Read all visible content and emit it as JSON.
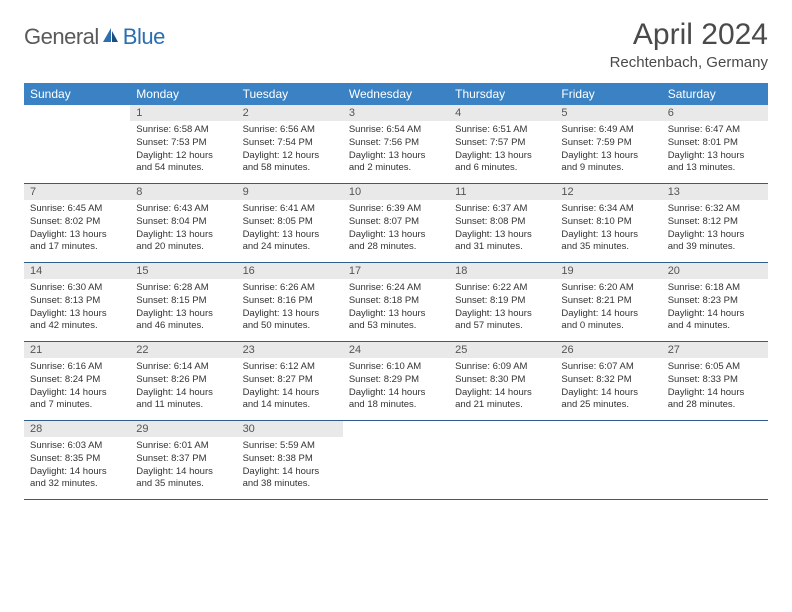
{
  "logo": {
    "text_general": "General",
    "text_blue": "Blue"
  },
  "title": "April 2024",
  "subtitle": "Rechtenbach, Germany",
  "colors": {
    "header_bg": "#3a82c4",
    "header_text": "#ffffff",
    "daynum_bg": "#e9e9e9",
    "border": "#2f5e8c",
    "logo_gray": "#5a5a5a",
    "logo_blue": "#2b6fb0"
  },
  "weekdays": [
    "Sunday",
    "Monday",
    "Tuesday",
    "Wednesday",
    "Thursday",
    "Friday",
    "Saturday"
  ],
  "weeks": [
    [
      {
        "n": "",
        "l1": "",
        "l2": "",
        "l3": "",
        "l4": ""
      },
      {
        "n": "1",
        "l1": "Sunrise: 6:58 AM",
        "l2": "Sunset: 7:53 PM",
        "l3": "Daylight: 12 hours",
        "l4": "and 54 minutes."
      },
      {
        "n": "2",
        "l1": "Sunrise: 6:56 AM",
        "l2": "Sunset: 7:54 PM",
        "l3": "Daylight: 12 hours",
        "l4": "and 58 minutes."
      },
      {
        "n": "3",
        "l1": "Sunrise: 6:54 AM",
        "l2": "Sunset: 7:56 PM",
        "l3": "Daylight: 13 hours",
        "l4": "and 2 minutes."
      },
      {
        "n": "4",
        "l1": "Sunrise: 6:51 AM",
        "l2": "Sunset: 7:57 PM",
        "l3": "Daylight: 13 hours",
        "l4": "and 6 minutes."
      },
      {
        "n": "5",
        "l1": "Sunrise: 6:49 AM",
        "l2": "Sunset: 7:59 PM",
        "l3": "Daylight: 13 hours",
        "l4": "and 9 minutes."
      },
      {
        "n": "6",
        "l1": "Sunrise: 6:47 AM",
        "l2": "Sunset: 8:01 PM",
        "l3": "Daylight: 13 hours",
        "l4": "and 13 minutes."
      }
    ],
    [
      {
        "n": "7",
        "l1": "Sunrise: 6:45 AM",
        "l2": "Sunset: 8:02 PM",
        "l3": "Daylight: 13 hours",
        "l4": "and 17 minutes."
      },
      {
        "n": "8",
        "l1": "Sunrise: 6:43 AM",
        "l2": "Sunset: 8:04 PM",
        "l3": "Daylight: 13 hours",
        "l4": "and 20 minutes."
      },
      {
        "n": "9",
        "l1": "Sunrise: 6:41 AM",
        "l2": "Sunset: 8:05 PM",
        "l3": "Daylight: 13 hours",
        "l4": "and 24 minutes."
      },
      {
        "n": "10",
        "l1": "Sunrise: 6:39 AM",
        "l2": "Sunset: 8:07 PM",
        "l3": "Daylight: 13 hours",
        "l4": "and 28 minutes."
      },
      {
        "n": "11",
        "l1": "Sunrise: 6:37 AM",
        "l2": "Sunset: 8:08 PM",
        "l3": "Daylight: 13 hours",
        "l4": "and 31 minutes."
      },
      {
        "n": "12",
        "l1": "Sunrise: 6:34 AM",
        "l2": "Sunset: 8:10 PM",
        "l3": "Daylight: 13 hours",
        "l4": "and 35 minutes."
      },
      {
        "n": "13",
        "l1": "Sunrise: 6:32 AM",
        "l2": "Sunset: 8:12 PM",
        "l3": "Daylight: 13 hours",
        "l4": "and 39 minutes."
      }
    ],
    [
      {
        "n": "14",
        "l1": "Sunrise: 6:30 AM",
        "l2": "Sunset: 8:13 PM",
        "l3": "Daylight: 13 hours",
        "l4": "and 42 minutes."
      },
      {
        "n": "15",
        "l1": "Sunrise: 6:28 AM",
        "l2": "Sunset: 8:15 PM",
        "l3": "Daylight: 13 hours",
        "l4": "and 46 minutes."
      },
      {
        "n": "16",
        "l1": "Sunrise: 6:26 AM",
        "l2": "Sunset: 8:16 PM",
        "l3": "Daylight: 13 hours",
        "l4": "and 50 minutes."
      },
      {
        "n": "17",
        "l1": "Sunrise: 6:24 AM",
        "l2": "Sunset: 8:18 PM",
        "l3": "Daylight: 13 hours",
        "l4": "and 53 minutes."
      },
      {
        "n": "18",
        "l1": "Sunrise: 6:22 AM",
        "l2": "Sunset: 8:19 PM",
        "l3": "Daylight: 13 hours",
        "l4": "and 57 minutes."
      },
      {
        "n": "19",
        "l1": "Sunrise: 6:20 AM",
        "l2": "Sunset: 8:21 PM",
        "l3": "Daylight: 14 hours",
        "l4": "and 0 minutes."
      },
      {
        "n": "20",
        "l1": "Sunrise: 6:18 AM",
        "l2": "Sunset: 8:23 PM",
        "l3": "Daylight: 14 hours",
        "l4": "and 4 minutes."
      }
    ],
    [
      {
        "n": "21",
        "l1": "Sunrise: 6:16 AM",
        "l2": "Sunset: 8:24 PM",
        "l3": "Daylight: 14 hours",
        "l4": "and 7 minutes."
      },
      {
        "n": "22",
        "l1": "Sunrise: 6:14 AM",
        "l2": "Sunset: 8:26 PM",
        "l3": "Daylight: 14 hours",
        "l4": "and 11 minutes."
      },
      {
        "n": "23",
        "l1": "Sunrise: 6:12 AM",
        "l2": "Sunset: 8:27 PM",
        "l3": "Daylight: 14 hours",
        "l4": "and 14 minutes."
      },
      {
        "n": "24",
        "l1": "Sunrise: 6:10 AM",
        "l2": "Sunset: 8:29 PM",
        "l3": "Daylight: 14 hours",
        "l4": "and 18 minutes."
      },
      {
        "n": "25",
        "l1": "Sunrise: 6:09 AM",
        "l2": "Sunset: 8:30 PM",
        "l3": "Daylight: 14 hours",
        "l4": "and 21 minutes."
      },
      {
        "n": "26",
        "l1": "Sunrise: 6:07 AM",
        "l2": "Sunset: 8:32 PM",
        "l3": "Daylight: 14 hours",
        "l4": "and 25 minutes."
      },
      {
        "n": "27",
        "l1": "Sunrise: 6:05 AM",
        "l2": "Sunset: 8:33 PM",
        "l3": "Daylight: 14 hours",
        "l4": "and 28 minutes."
      }
    ],
    [
      {
        "n": "28",
        "l1": "Sunrise: 6:03 AM",
        "l2": "Sunset: 8:35 PM",
        "l3": "Daylight: 14 hours",
        "l4": "and 32 minutes."
      },
      {
        "n": "29",
        "l1": "Sunrise: 6:01 AM",
        "l2": "Sunset: 8:37 PM",
        "l3": "Daylight: 14 hours",
        "l4": "and 35 minutes."
      },
      {
        "n": "30",
        "l1": "Sunrise: 5:59 AM",
        "l2": "Sunset: 8:38 PM",
        "l3": "Daylight: 14 hours",
        "l4": "and 38 minutes."
      },
      {
        "n": "",
        "l1": "",
        "l2": "",
        "l3": "",
        "l4": ""
      },
      {
        "n": "",
        "l1": "",
        "l2": "",
        "l3": "",
        "l4": ""
      },
      {
        "n": "",
        "l1": "",
        "l2": "",
        "l3": "",
        "l4": ""
      },
      {
        "n": "",
        "l1": "",
        "l2": "",
        "l3": "",
        "l4": ""
      }
    ]
  ]
}
